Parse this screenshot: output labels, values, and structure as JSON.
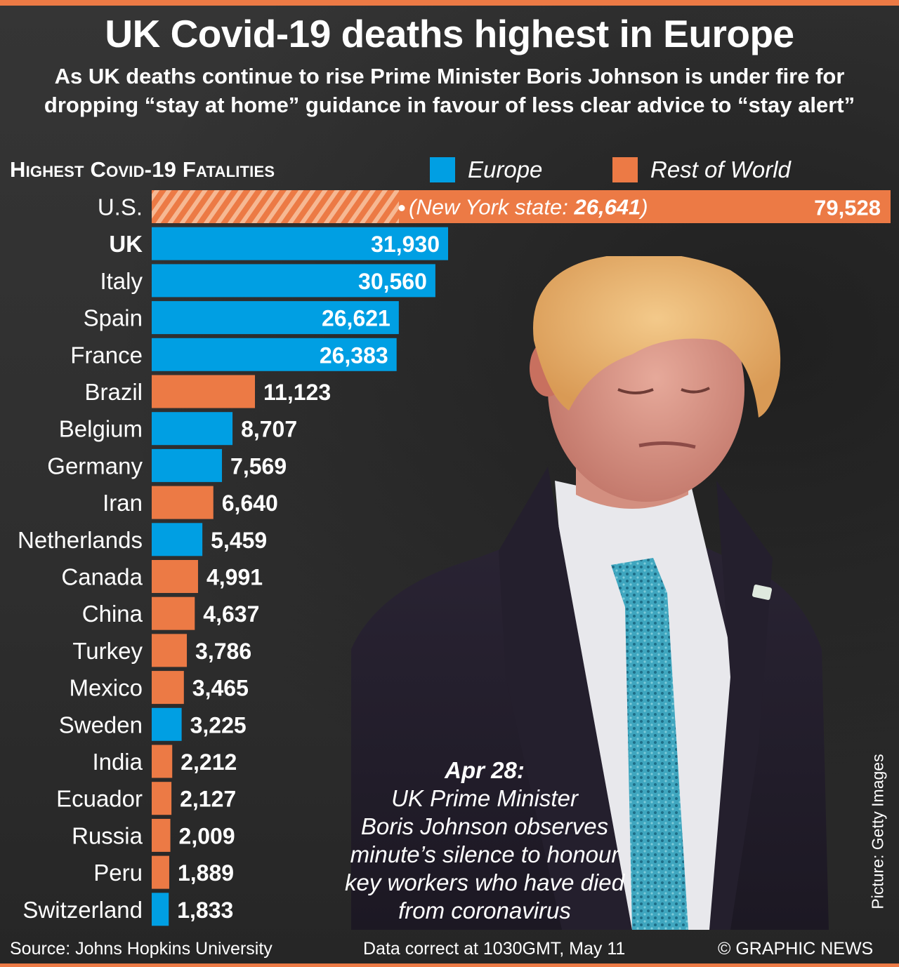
{
  "header": {
    "title": "UK Covid-19 deaths highest in Europe",
    "subtitle": "As UK deaths continue to rise Prime Minister Boris Johnson is under fire for dropping “stay at home” guidance in favour of less clear advice to “stay alert”"
  },
  "colors": {
    "europe": "#009fe3",
    "rest_of_world": "#ec7a45",
    "hatch_light": "#f6b893",
    "background": "#333333"
  },
  "chart_data": {
    "type": "bar",
    "orientation": "horizontal",
    "title": "Highest Covid-19 Fatalities",
    "legend": [
      {
        "name": "Europe",
        "color_key": "europe"
      },
      {
        "name": "Rest of World",
        "color_key": "rest_of_world"
      }
    ],
    "legend_placement": "top-right",
    "unit": "deaths",
    "categories": [
      "U.S.",
      "UK",
      "Italy",
      "Spain",
      "France",
      "Brazil",
      "Belgium",
      "Germany",
      "Iran",
      "Netherlands",
      "Canada",
      "China",
      "Turkey",
      "Mexico",
      "Sweden",
      "India",
      "Ecuador",
      "Russia",
      "Peru",
      "Switzerland"
    ],
    "values": [
      79528,
      31930,
      30560,
      26621,
      26383,
      11123,
      8707,
      7569,
      6640,
      5459,
      4991,
      4637,
      3786,
      3465,
      3225,
      2212,
      2127,
      2009,
      1889,
      1833
    ],
    "labels": [
      "79,528",
      "31,930",
      "30,560",
      "26,621",
      "26,383",
      "11,123",
      "8,707",
      "7,569",
      "6,640",
      "5,459",
      "4,991",
      "4,637",
      "3,786",
      "3,465",
      "3,225",
      "2,212",
      "2,127",
      "2,009",
      "1,889",
      "1,833"
    ],
    "groups": [
      "Rest of World",
      "Europe",
      "Europe",
      "Europe",
      "Europe",
      "Rest of World",
      "Europe",
      "Europe",
      "Rest of World",
      "Europe",
      "Rest of World",
      "Rest of World",
      "Rest of World",
      "Rest of World",
      "Europe",
      "Rest of World",
      "Rest of World",
      "Rest of World",
      "Rest of World",
      "Europe"
    ],
    "highlight": "UK",
    "broken_bar": "U.S.",
    "annotation": {
      "category": "U.S.",
      "prefix": "(New York state: ",
      "value_label": "26,641",
      "suffix": ")",
      "value": 26641
    }
  },
  "photo": {
    "caption_date": "Apr 28:",
    "caption_lines": [
      "UK Prime Minister",
      "Boris Johnson observes",
      "minute’s silence to honour",
      "key workers who have died",
      "from coronavirus"
    ],
    "credit": "Picture: Getty Images"
  },
  "footer": {
    "source": "Source: Johns Hopkins University",
    "data_note": "Data correct at 1030GMT, May 11",
    "copyright": "© GRAPHIC NEWS"
  }
}
